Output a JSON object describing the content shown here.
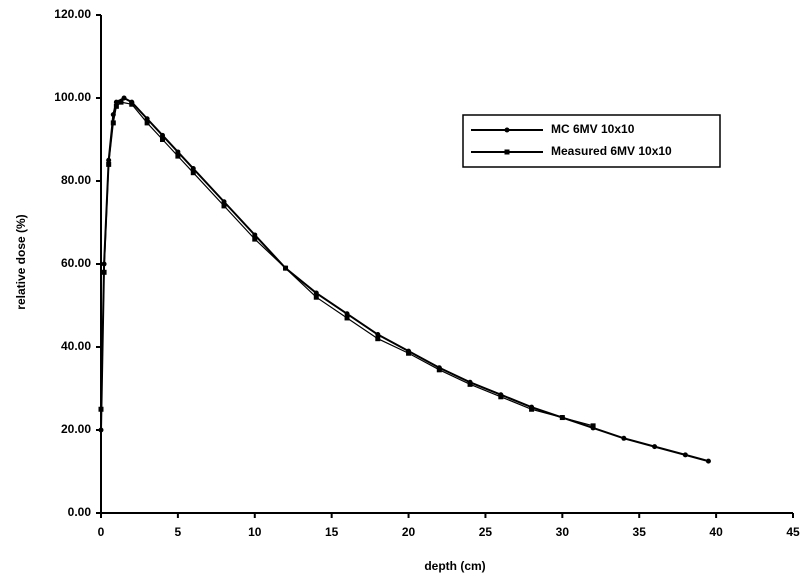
{
  "chart_data": {
    "type": "line",
    "x_label": "depth (cm)",
    "y_label": "relative dose (%)",
    "xlim": [
      0,
      45
    ],
    "xticks": [
      0,
      5,
      10,
      15,
      20,
      25,
      30,
      35,
      40,
      45
    ],
    "ylim": [
      0,
      120
    ],
    "yticks": [
      {
        "value": 0,
        "label": "0.00"
      },
      {
        "value": 20,
        "label": "20.00"
      },
      {
        "value": 40,
        "label": "40.00"
      },
      {
        "value": 60,
        "label": "60.00"
      },
      {
        "value": 80,
        "label": "80.00"
      },
      {
        "value": 100,
        "label": "100.00"
      },
      {
        "value": 120,
        "label": "120.00"
      }
    ],
    "grid": false,
    "legend": "upper right",
    "series": [
      {
        "name": "MC 6MV 10x10",
        "color": "#000000",
        "marker": "circle",
        "x": [
          0,
          0.2,
          0.5,
          0.8,
          1.0,
          1.5,
          2,
          3,
          4,
          5,
          6,
          8,
          10,
          12,
          14,
          16,
          18,
          20,
          22,
          24,
          26,
          28,
          30,
          32,
          34,
          36,
          38,
          39.5
        ],
        "values": [
          20,
          60,
          85,
          96,
          99,
          100,
          99,
          95,
          91,
          87,
          83,
          75,
          67,
          59,
          53,
          48,
          43,
          39,
          35,
          31.5,
          28.5,
          25.5,
          23,
          20.5,
          18,
          16,
          14,
          12.5
        ]
      },
      {
        "name": "Measured 6MV  10x10",
        "color": "#000000",
        "marker": "square",
        "x": [
          0,
          0.2,
          0.5,
          0.8,
          1.0,
          1.3,
          2,
          3,
          4,
          5,
          6,
          8,
          10,
          12,
          14,
          16,
          18,
          20,
          22,
          24,
          26,
          28,
          30,
          32
        ],
        "values": [
          25,
          58,
          84,
          94,
          98,
          99,
          98.5,
          94,
          90,
          86,
          82,
          74,
          66,
          59,
          52,
          47,
          42,
          38.5,
          34.5,
          31,
          28,
          25,
          23,
          21
        ]
      }
    ]
  }
}
